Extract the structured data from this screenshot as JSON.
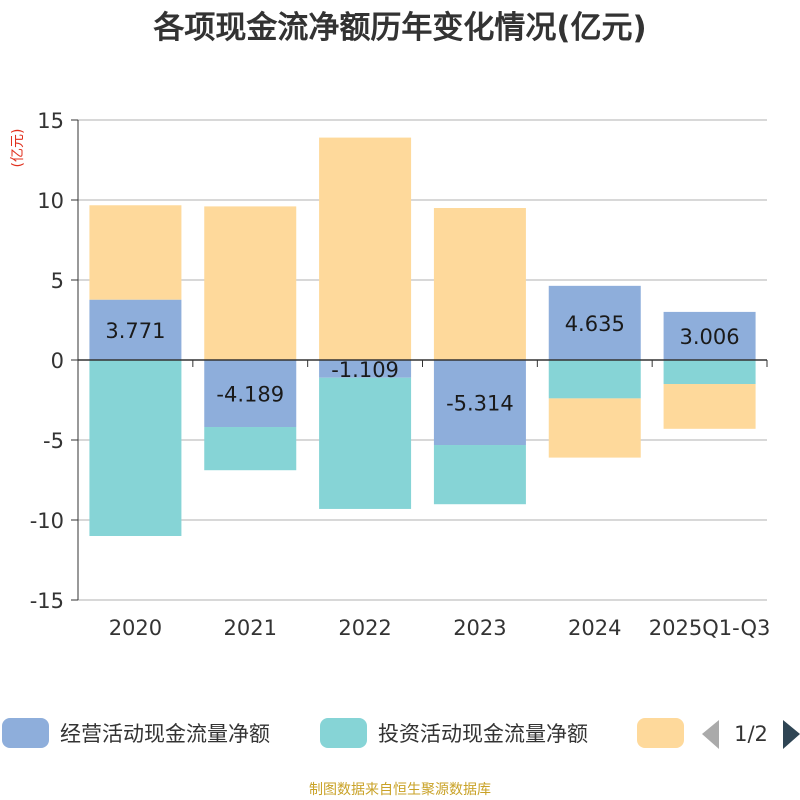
{
  "chart_data": {
    "type": "bar",
    "stacked": true,
    "title": "各项现金流净额历年变化情况(亿元)",
    "ylabel": "(亿元)",
    "ylim": [
      -15,
      15
    ],
    "yticks": [
      15,
      10,
      5,
      0,
      -5,
      -10,
      -15
    ],
    "ytick_labels": [
      "15",
      "10",
      "5",
      "0",
      "-5",
      "-10",
      "-15"
    ],
    "categories": [
      "2020",
      "2021",
      "2022",
      "2023",
      "2024",
      "2025Q1-Q3"
    ],
    "series": [
      {
        "name": "经营活动现金流量净额",
        "color": "#8eaedb",
        "values": [
          3.771,
          -4.189,
          -1.109,
          -5.314,
          4.635,
          3.006
        ],
        "labels": [
          "3.771",
          "-4.189",
          "-1.109",
          "-5.314",
          "4.635",
          "3.006"
        ]
      },
      {
        "name": "投资活动现金流量净额",
        "color": "#86d4d6",
        "values": [
          -11.0,
          -2.7,
          -8.2,
          -3.7,
          -2.4,
          -1.5
        ]
      },
      {
        "name": "",
        "color": "#fed99b",
        "values": [
          5.9,
          9.6,
          13.9,
          9.5,
          -3.7,
          -2.8
        ]
      }
    ],
    "grid": true,
    "legend": {
      "position": "bottom",
      "page": "1/2"
    }
  },
  "source": "制图数据来自恒生聚源数据库",
  "colors": {
    "grid": "#cccccc",
    "axis": "#333333",
    "pager_active": "#2f4554",
    "pager_inactive": "#aaaaaa"
  }
}
